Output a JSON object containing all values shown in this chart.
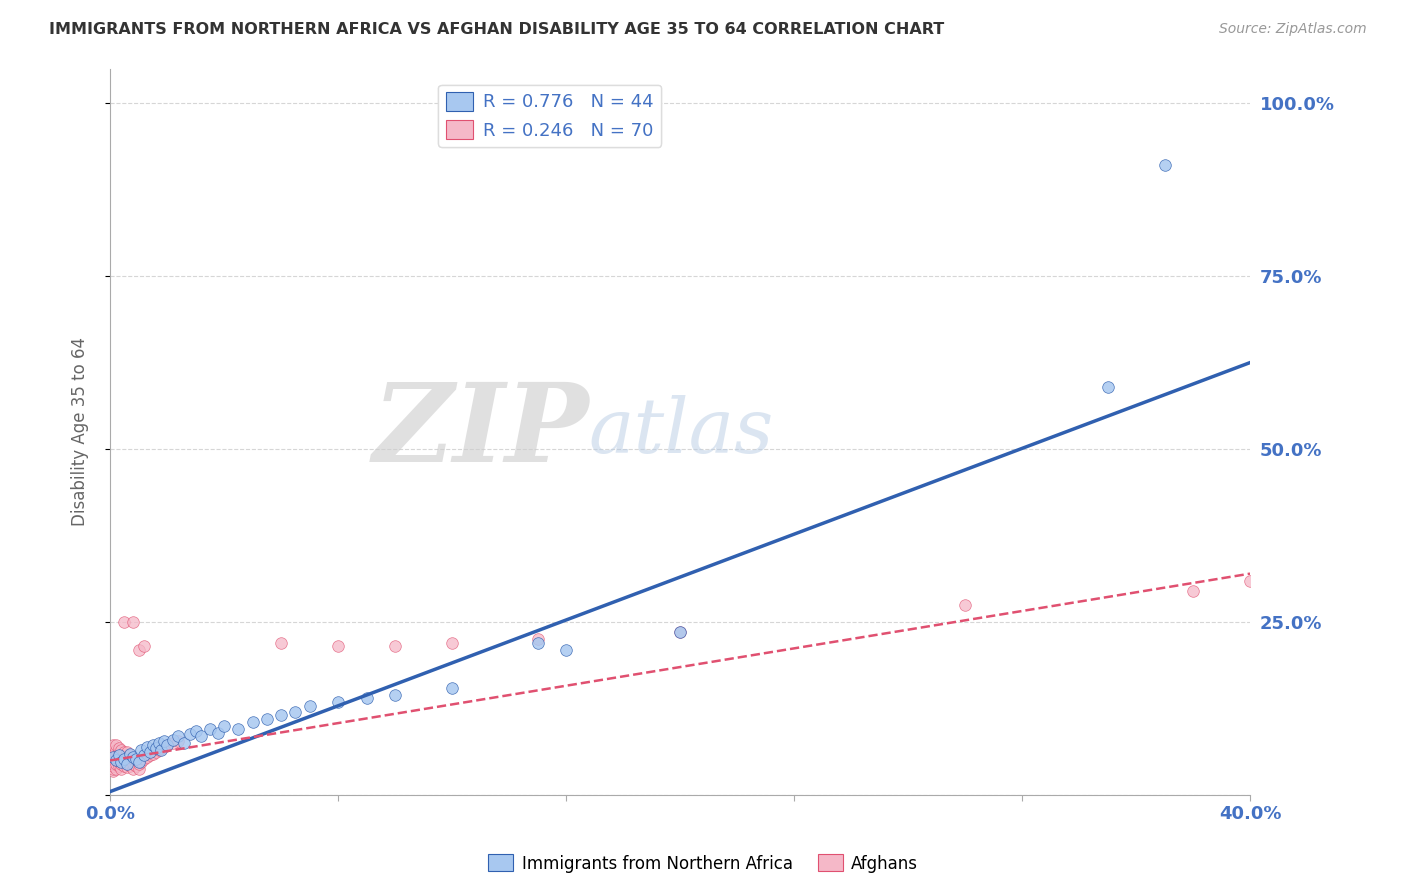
{
  "title": "IMMIGRANTS FROM NORTHERN AFRICA VS AFGHAN DISABILITY AGE 35 TO 64 CORRELATION CHART",
  "source": "Source: ZipAtlas.com",
  "ylabel": "Disability Age 35 to 64",
  "xlim": [
    0.0,
    0.4
  ],
  "ylim": [
    0.0,
    1.05
  ],
  "xtick_positions": [
    0.0,
    0.08,
    0.16,
    0.24,
    0.32,
    0.4
  ],
  "xticklabels": [
    "0.0%",
    "",
    "",
    "",
    "",
    "40.0%"
  ],
  "ytick_positions": [
    0.0,
    0.25,
    0.5,
    0.75,
    1.0
  ],
  "yticklabels_right": [
    "",
    "25.0%",
    "50.0%",
    "75.0%",
    "100.0%"
  ],
  "color_blue": "#A8C8F0",
  "color_pink": "#F5B8C8",
  "trendline_blue_color": "#3060B0",
  "trendline_pink_color": "#E05070",
  "legend_label_blue": "Immigrants from Northern Africa",
  "legend_label_pink": "Afghans",
  "watermark_zip": "ZIP",
  "watermark_atlas": "atlas",
  "background_color": "#FFFFFF",
  "grid_color": "#CCCCCC",
  "tick_color": "#4472C4",
  "blue_trend_x": [
    0.0,
    0.4
  ],
  "blue_trend_y": [
    0.005,
    0.625
  ],
  "pink_trend_x": [
    0.0,
    0.4
  ],
  "pink_trend_y": [
    0.05,
    0.32
  ],
  "blue_points": [
    [
      0.001,
      0.055
    ],
    [
      0.002,
      0.05
    ],
    [
      0.003,
      0.058
    ],
    [
      0.004,
      0.048
    ],
    [
      0.005,
      0.052
    ],
    [
      0.006,
      0.045
    ],
    [
      0.007,
      0.06
    ],
    [
      0.008,
      0.055
    ],
    [
      0.009,
      0.052
    ],
    [
      0.01,
      0.048
    ],
    [
      0.011,
      0.065
    ],
    [
      0.012,
      0.058
    ],
    [
      0.013,
      0.07
    ],
    [
      0.014,
      0.062
    ],
    [
      0.015,
      0.072
    ],
    [
      0.016,
      0.068
    ],
    [
      0.017,
      0.075
    ],
    [
      0.018,
      0.065
    ],
    [
      0.019,
      0.078
    ],
    [
      0.02,
      0.072
    ],
    [
      0.022,
      0.08
    ],
    [
      0.024,
      0.085
    ],
    [
      0.026,
      0.075
    ],
    [
      0.028,
      0.088
    ],
    [
      0.03,
      0.092
    ],
    [
      0.032,
      0.085
    ],
    [
      0.035,
      0.095
    ],
    [
      0.038,
      0.09
    ],
    [
      0.04,
      0.1
    ],
    [
      0.045,
      0.095
    ],
    [
      0.05,
      0.105
    ],
    [
      0.055,
      0.11
    ],
    [
      0.06,
      0.115
    ],
    [
      0.065,
      0.12
    ],
    [
      0.07,
      0.128
    ],
    [
      0.08,
      0.135
    ],
    [
      0.09,
      0.14
    ],
    [
      0.1,
      0.145
    ],
    [
      0.12,
      0.155
    ],
    [
      0.15,
      0.22
    ],
    [
      0.16,
      0.21
    ],
    [
      0.2,
      0.235
    ],
    [
      0.35,
      0.59
    ],
    [
      0.37,
      0.91
    ]
  ],
  "pink_points": [
    [
      0.001,
      0.035
    ],
    [
      0.001,
      0.038
    ],
    [
      0.001,
      0.042
    ],
    [
      0.001,
      0.048
    ],
    [
      0.001,
      0.052
    ],
    [
      0.001,
      0.058
    ],
    [
      0.001,
      0.062
    ],
    [
      0.001,
      0.068
    ],
    [
      0.001,
      0.072
    ],
    [
      0.001,
      0.045
    ],
    [
      0.002,
      0.038
    ],
    [
      0.002,
      0.045
    ],
    [
      0.002,
      0.052
    ],
    [
      0.002,
      0.058
    ],
    [
      0.002,
      0.065
    ],
    [
      0.002,
      0.072
    ],
    [
      0.003,
      0.042
    ],
    [
      0.003,
      0.048
    ],
    [
      0.003,
      0.055
    ],
    [
      0.003,
      0.062
    ],
    [
      0.003,
      0.068
    ],
    [
      0.004,
      0.038
    ],
    [
      0.004,
      0.045
    ],
    [
      0.004,
      0.052
    ],
    [
      0.004,
      0.058
    ],
    [
      0.004,
      0.065
    ],
    [
      0.005,
      0.042
    ],
    [
      0.005,
      0.048
    ],
    [
      0.005,
      0.055
    ],
    [
      0.005,
      0.062
    ],
    [
      0.006,
      0.04
    ],
    [
      0.006,
      0.048
    ],
    [
      0.006,
      0.055
    ],
    [
      0.006,
      0.062
    ],
    [
      0.007,
      0.042
    ],
    [
      0.007,
      0.05
    ],
    [
      0.007,
      0.058
    ],
    [
      0.008,
      0.038
    ],
    [
      0.008,
      0.045
    ],
    [
      0.008,
      0.052
    ],
    [
      0.009,
      0.042
    ],
    [
      0.009,
      0.05
    ],
    [
      0.01,
      0.038
    ],
    [
      0.01,
      0.045
    ],
    [
      0.011,
      0.048
    ],
    [
      0.012,
      0.052
    ],
    [
      0.013,
      0.055
    ],
    [
      0.014,
      0.058
    ],
    [
      0.015,
      0.06
    ],
    [
      0.016,
      0.062
    ],
    [
      0.017,
      0.065
    ],
    [
      0.018,
      0.068
    ],
    [
      0.019,
      0.07
    ],
    [
      0.02,
      0.072
    ],
    [
      0.022,
      0.075
    ],
    [
      0.024,
      0.078
    ],
    [
      0.005,
      0.25
    ],
    [
      0.008,
      0.25
    ],
    [
      0.01,
      0.21
    ],
    [
      0.012,
      0.215
    ],
    [
      0.06,
      0.22
    ],
    [
      0.08,
      0.215
    ],
    [
      0.1,
      0.215
    ],
    [
      0.12,
      0.22
    ],
    [
      0.15,
      0.225
    ],
    [
      0.2,
      0.235
    ],
    [
      0.3,
      0.275
    ],
    [
      0.38,
      0.295
    ],
    [
      0.4,
      0.31
    ]
  ],
  "marker_size": 70
}
